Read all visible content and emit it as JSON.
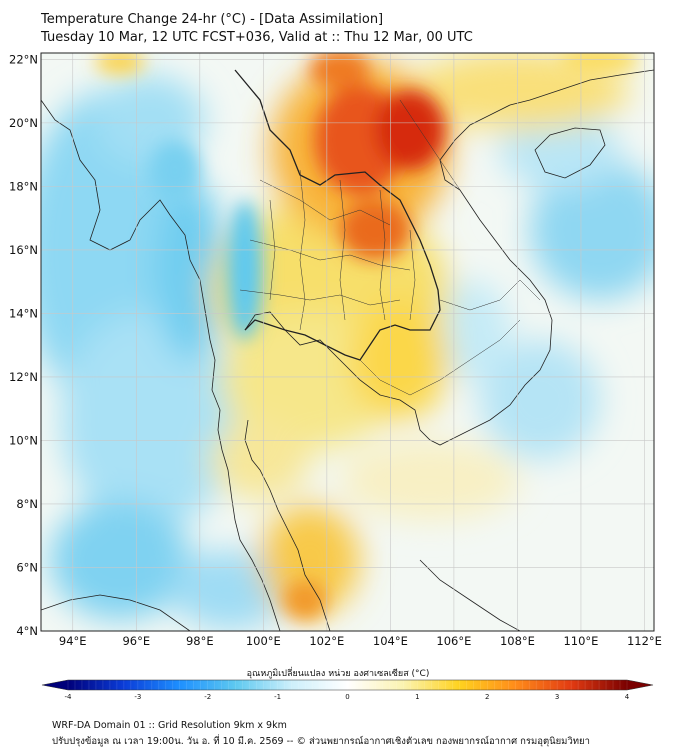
{
  "header": {
    "title": "Temperature Change 24-hr (°C) - [Data Assimilation]",
    "subtitle": "Tuesday 10 Mar, 12 UTC FCST+036, Valid at :: Thu 12 Mar, 00 UTC"
  },
  "map": {
    "lat_labels": [
      "22°N",
      "20°N",
      "18°N",
      "16°N",
      "14°N",
      "12°N",
      "10°N",
      "8°N",
      "6°N",
      "4°N"
    ],
    "lon_labels": [
      "94°E",
      "96°E",
      "98°E",
      "100°E",
      "102°E",
      "104°E",
      "106°E",
      "108°E",
      "110°E",
      "112°E"
    ],
    "extent": {
      "lon": [
        93,
        112.3
      ],
      "lat": [
        4,
        22.2
      ]
    },
    "grid": true,
    "warm_max_color": "#d62a10",
    "cool_color": "#5ec9f0",
    "neutral_color": "#f6f4ea"
  },
  "colorbar": {
    "title": "อุณหภูมิเปลี่ยนแปลง หน่วย องศาเซลเซียส (°C)",
    "min": -4,
    "max": 4,
    "tick_labels": [
      "-4",
      "-3",
      "-2",
      "-1",
      "0",
      "1",
      "2",
      "3",
      "4"
    ],
    "colors": [
      "#00007a",
      "#0a3cd8",
      "#1e90ff",
      "#5ec9f0",
      "#cdeffb",
      "#ffffff",
      "#fbf3b0",
      "#ffd21f",
      "#ff8c1a",
      "#e23b12",
      "#7a0000"
    ]
  },
  "footer": {
    "line1": "WRF-DA Domain 01 :: Grid Resolution 9km x 9km",
    "line2": "ปรับปรุงข้อมูล ณ เวลา 19:00น. วัน อ. ที่ 10 มี.ค. 2569 -- © ส่วนพยากรณ์อากาศเชิงตัวเลข กองพยากรณ์อากาศ กรมอุตุนิยมวิทยา"
  }
}
